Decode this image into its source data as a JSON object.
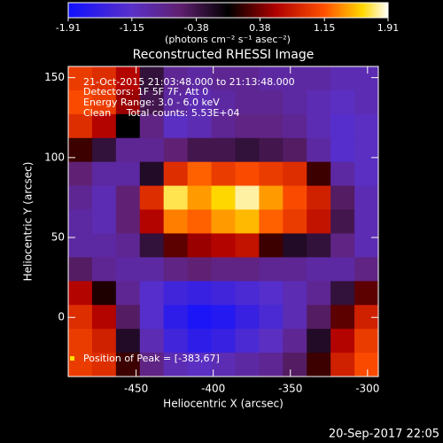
{
  "chart_data": {
    "type": "heatmap",
    "title": "Reconstructed RHESSI Image",
    "xlabel": "Heliocentric X (arcsec)",
    "ylabel": "Heliocentric Y (arcsec)",
    "xlim": [
      -494,
      -293
    ],
    "xticks": [
      -450,
      -400,
      -350,
      -300
    ],
    "ylim": [
      -37,
      157
    ],
    "yticks": [
      0,
      50,
      100,
      150
    ],
    "colorbar": {
      "label": "(photons cm⁻² s⁻¹ asec⁻²)",
      "lim": [
        -1.91,
        1.91
      ],
      "ticks": [
        -1.91,
        -1.15,
        -0.38,
        0.38,
        1.15,
        1.91
      ]
    },
    "annotations": [
      "21-Oct-2015 21:03:48.000 to 21:13:48.000",
      "Detectors: 1F 5F 7F, Att 0",
      "Energy Range: 3.0 - 6.0 keV",
      "Clean     Total counts: 5.53E+04"
    ],
    "peak_label": "Position of Peak = [-383,67]",
    "footer": "20-Sep-2017 22:05",
    "z": [
      [
        1.0,
        0.9,
        0.6,
        -0.3,
        -0.8,
        -0.9,
        -0.8,
        -0.8,
        -0.9,
        -0.9,
        -0.9,
        -1.0,
        -1.0
      ],
      [
        1.1,
        1.0,
        0.5,
        -0.4,
        -0.9,
        -1.0,
        -0.9,
        -0.8,
        -0.8,
        -0.9,
        -1.0,
        -1.1,
        -1.0
      ],
      [
        0.9,
        0.6,
        0.0,
        -0.7,
        -1.1,
        -1.0,
        -0.8,
        -0.7,
        -0.7,
        -0.8,
        -1.0,
        -1.2,
        -1.1
      ],
      [
        0.2,
        -0.3,
        -0.8,
        -0.8,
        -0.6,
        -0.4,
        -0.4,
        -0.3,
        -0.4,
        -0.5,
        -0.9,
        -1.2,
        -1.1
      ],
      [
        -0.6,
        -0.9,
        -0.9,
        -0.2,
        0.9,
        1.2,
        1.0,
        1.1,
        1.0,
        0.9,
        0.2,
        -0.9,
        -1.1
      ],
      [
        -0.8,
        -1.0,
        -0.6,
        0.9,
        1.7,
        1.4,
        1.6,
        1.8,
        1.4,
        1.1,
        0.8,
        -0.5,
        -1.0
      ],
      [
        -0.9,
        -1.0,
        -0.6,
        0.6,
        1.3,
        1.2,
        1.4,
        1.5,
        1.2,
        1.0,
        0.7,
        -0.4,
        -1.0
      ],
      [
        -0.9,
        -0.9,
        -0.8,
        -0.3,
        0.3,
        0.5,
        0.6,
        0.7,
        0.2,
        -0.2,
        -0.3,
        -0.7,
        -1.0
      ],
      [
        -0.5,
        -0.8,
        -0.9,
        -0.9,
        -0.7,
        -0.6,
        -0.7,
        -0.7,
        -0.8,
        -0.8,
        -0.9,
        -0.9,
        -0.7
      ],
      [
        0.6,
        0.1,
        -0.8,
        -1.2,
        -1.4,
        -1.5,
        -1.4,
        -1.3,
        -1.2,
        -1.0,
        -0.8,
        -0.3,
        0.3
      ],
      [
        0.9,
        0.6,
        -0.5,
        -1.2,
        -1.6,
        -1.8,
        -1.7,
        -1.5,
        -1.3,
        -1.0,
        -0.5,
        0.3,
        0.8
      ],
      [
        1.0,
        0.8,
        -0.2,
        -1.0,
        -1.4,
        -1.6,
        -1.5,
        -1.3,
        -1.1,
        -0.8,
        -0.2,
        0.6,
        1.0
      ],
      [
        1.0,
        0.9,
        0.2,
        -0.7,
        -1.0,
        -1.1,
        -1.0,
        -0.9,
        -0.8,
        -0.5,
        0.2,
        0.8,
        1.1
      ]
    ]
  }
}
